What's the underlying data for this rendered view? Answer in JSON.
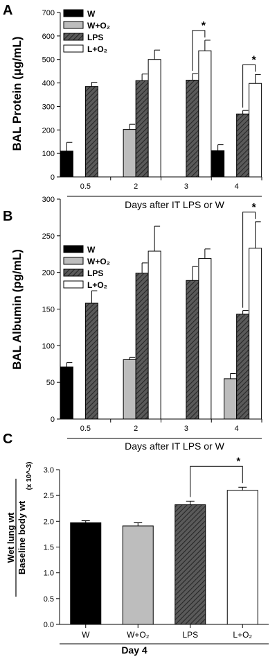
{
  "figure": {
    "panels": [
      "A",
      "B",
      "C"
    ]
  },
  "colors": {
    "W": "#000000",
    "W+O2": "#bdbdbd",
    "LPS": "#4a4a4a",
    "L+O2": "#ffffff"
  },
  "chart_data": [
    {
      "panel": "A",
      "type": "bar",
      "ylabel": "BAL Protein (μg/mL)",
      "xlabel": "Days after IT LPS or W",
      "ylim": [
        0,
        700
      ],
      "yticks": [
        0,
        100,
        200,
        300,
        400,
        500,
        600,
        700
      ],
      "categories": [
        "0.5",
        "2",
        "3",
        "4"
      ],
      "legend": {
        "position": "top-left",
        "entries": [
          "W",
          "W+O₂",
          "LPS",
          "L+O₂"
        ]
      },
      "series": [
        {
          "name": "W",
          "key": "W",
          "values": [
            110,
            null,
            null,
            112
          ],
          "errors": [
            37,
            null,
            null,
            25
          ]
        },
        {
          "name": "W+O₂",
          "key": "W+O2",
          "values": [
            null,
            202,
            null,
            null
          ],
          "errors": [
            null,
            22,
            null,
            null
          ]
        },
        {
          "name": "LPS",
          "key": "LPS",
          "values": [
            385,
            410,
            412,
            268
          ],
          "errors": [
            18,
            28,
            28,
            15
          ]
        },
        {
          "name": "L+O₂",
          "key": "L+O2",
          "values": [
            null,
            500,
            537,
            398
          ],
          "errors": [
            null,
            40,
            45,
            38
          ]
        }
      ],
      "significance": [
        {
          "label": "*",
          "category": "3",
          "from": "LPS",
          "to": "L+O2"
        },
        {
          "label": "*",
          "category": "4",
          "from": "LPS",
          "to": "L+O2"
        }
      ]
    },
    {
      "panel": "B",
      "type": "bar",
      "ylabel": "BAL Albumin (pg/mL)",
      "xlabel": "Days after IT LPS or W",
      "ylim": [
        0,
        300
      ],
      "yticks": [
        0,
        50,
        100,
        150,
        200,
        250,
        300
      ],
      "categories": [
        "0.5",
        "2",
        "3",
        "4"
      ],
      "legend": {
        "position": "top-left",
        "entries": [
          "W",
          "W+O₂",
          "LPS",
          "L+O₂"
        ]
      },
      "series": [
        {
          "name": "W",
          "key": "W",
          "values": [
            71,
            null,
            null,
            null
          ],
          "errors": [
            6,
            null,
            null,
            null
          ]
        },
        {
          "name": "W+O₂",
          "key": "W+O2",
          "values": [
            null,
            81,
            null,
            55
          ],
          "errors": [
            null,
            3,
            null,
            7
          ]
        },
        {
          "name": "LPS",
          "key": "LPS",
          "values": [
            158,
            199,
            189,
            143
          ],
          "errors": [
            17,
            14,
            19,
            5
          ]
        },
        {
          "name": "L+O₂",
          "key": "L+O2",
          "values": [
            null,
            229,
            219,
            233
          ],
          "errors": [
            null,
            34,
            13,
            36
          ]
        }
      ],
      "significance": [
        {
          "label": "*",
          "category": "4",
          "from": "LPS",
          "to": "L+O2"
        }
      ]
    },
    {
      "panel": "C",
      "type": "bar",
      "ylabel_numerator": "Wet lung wt",
      "ylabel_denominator": "Baseline body wt",
      "ylabel_scale": "(x 10^-3)",
      "xlabel": "Day 4",
      "ylim": [
        0,
        3.0
      ],
      "yticks": [
        "0.0",
        "0.5",
        "1.0",
        "1.5",
        "2.0",
        "2.5",
        "3.0"
      ],
      "categories": [
        "W",
        "W+O₂",
        "LPS",
        "L+O₂"
      ],
      "keys": [
        "W",
        "W+O2",
        "LPS",
        "L+O2"
      ],
      "values": [
        1.97,
        1.91,
        2.32,
        2.6
      ],
      "errors": [
        0.04,
        0.06,
        0.07,
        0.06
      ],
      "significance": [
        {
          "label": "*",
          "from": "LPS",
          "to": "L+O2"
        }
      ]
    }
  ]
}
